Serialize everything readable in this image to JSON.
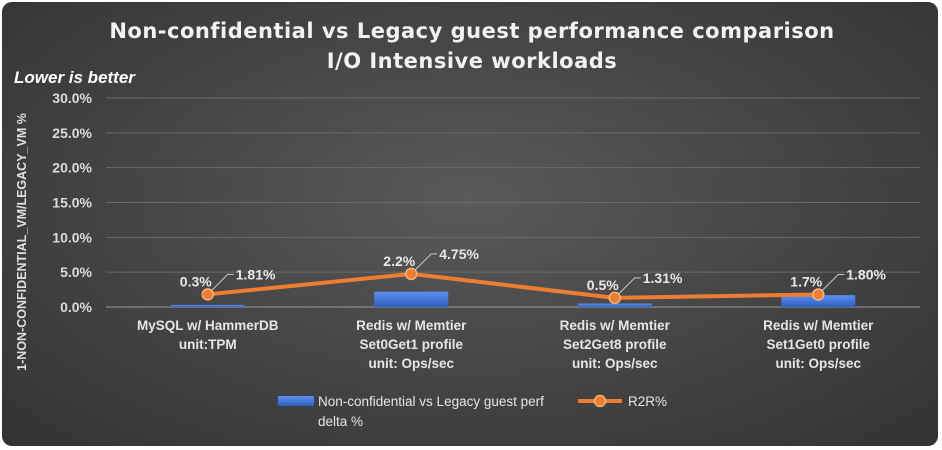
{
  "chart_data": {
    "type": "bar+line",
    "title_line1": "Non-confidential vs Legacy guest performance comparison",
    "title_line2": "I/O Intensive workloads",
    "subtitle": "Lower is better",
    "ylabel": "1-NON-CONFIDENTIAL_VM/LEGACY_VM %",
    "ylim": [
      0,
      30
    ],
    "yticks": [
      "0.0%",
      "5.0%",
      "10.0%",
      "15.0%",
      "20.0%",
      "25.0%",
      "30.0%"
    ],
    "categories": [
      [
        "MySQL w/ HammerDB",
        "unit:TPM"
      ],
      [
        "Redis w/ Memtier",
        "Set0Get1 profile",
        "unit: Ops/sec"
      ],
      [
        "Redis w/ Memtier",
        "Set2Get8 profile",
        "unit: Ops/sec"
      ],
      [
        "Redis w/ Memtier",
        "Set1Get0 profile",
        "unit: Ops/sec"
      ]
    ],
    "series": [
      {
        "name": "Non-confidential vs Legacy guest perf delta %",
        "legend_lines": [
          "Non-confidential vs Legacy guest perf",
          "delta %"
        ],
        "kind": "bar",
        "values": [
          0.3,
          2.2,
          0.5,
          1.7
        ],
        "labels": [
          "0.3%",
          "2.2%",
          "0.5%",
          "1.7%"
        ],
        "color": "#4a7fe0"
      },
      {
        "name": "R2R%",
        "kind": "line",
        "values": [
          1.81,
          4.75,
          1.31,
          1.8
        ],
        "labels": [
          "1.81%",
          "4.75%",
          "1.31%",
          "1.80%"
        ],
        "color": "#ed7d31"
      }
    ]
  }
}
